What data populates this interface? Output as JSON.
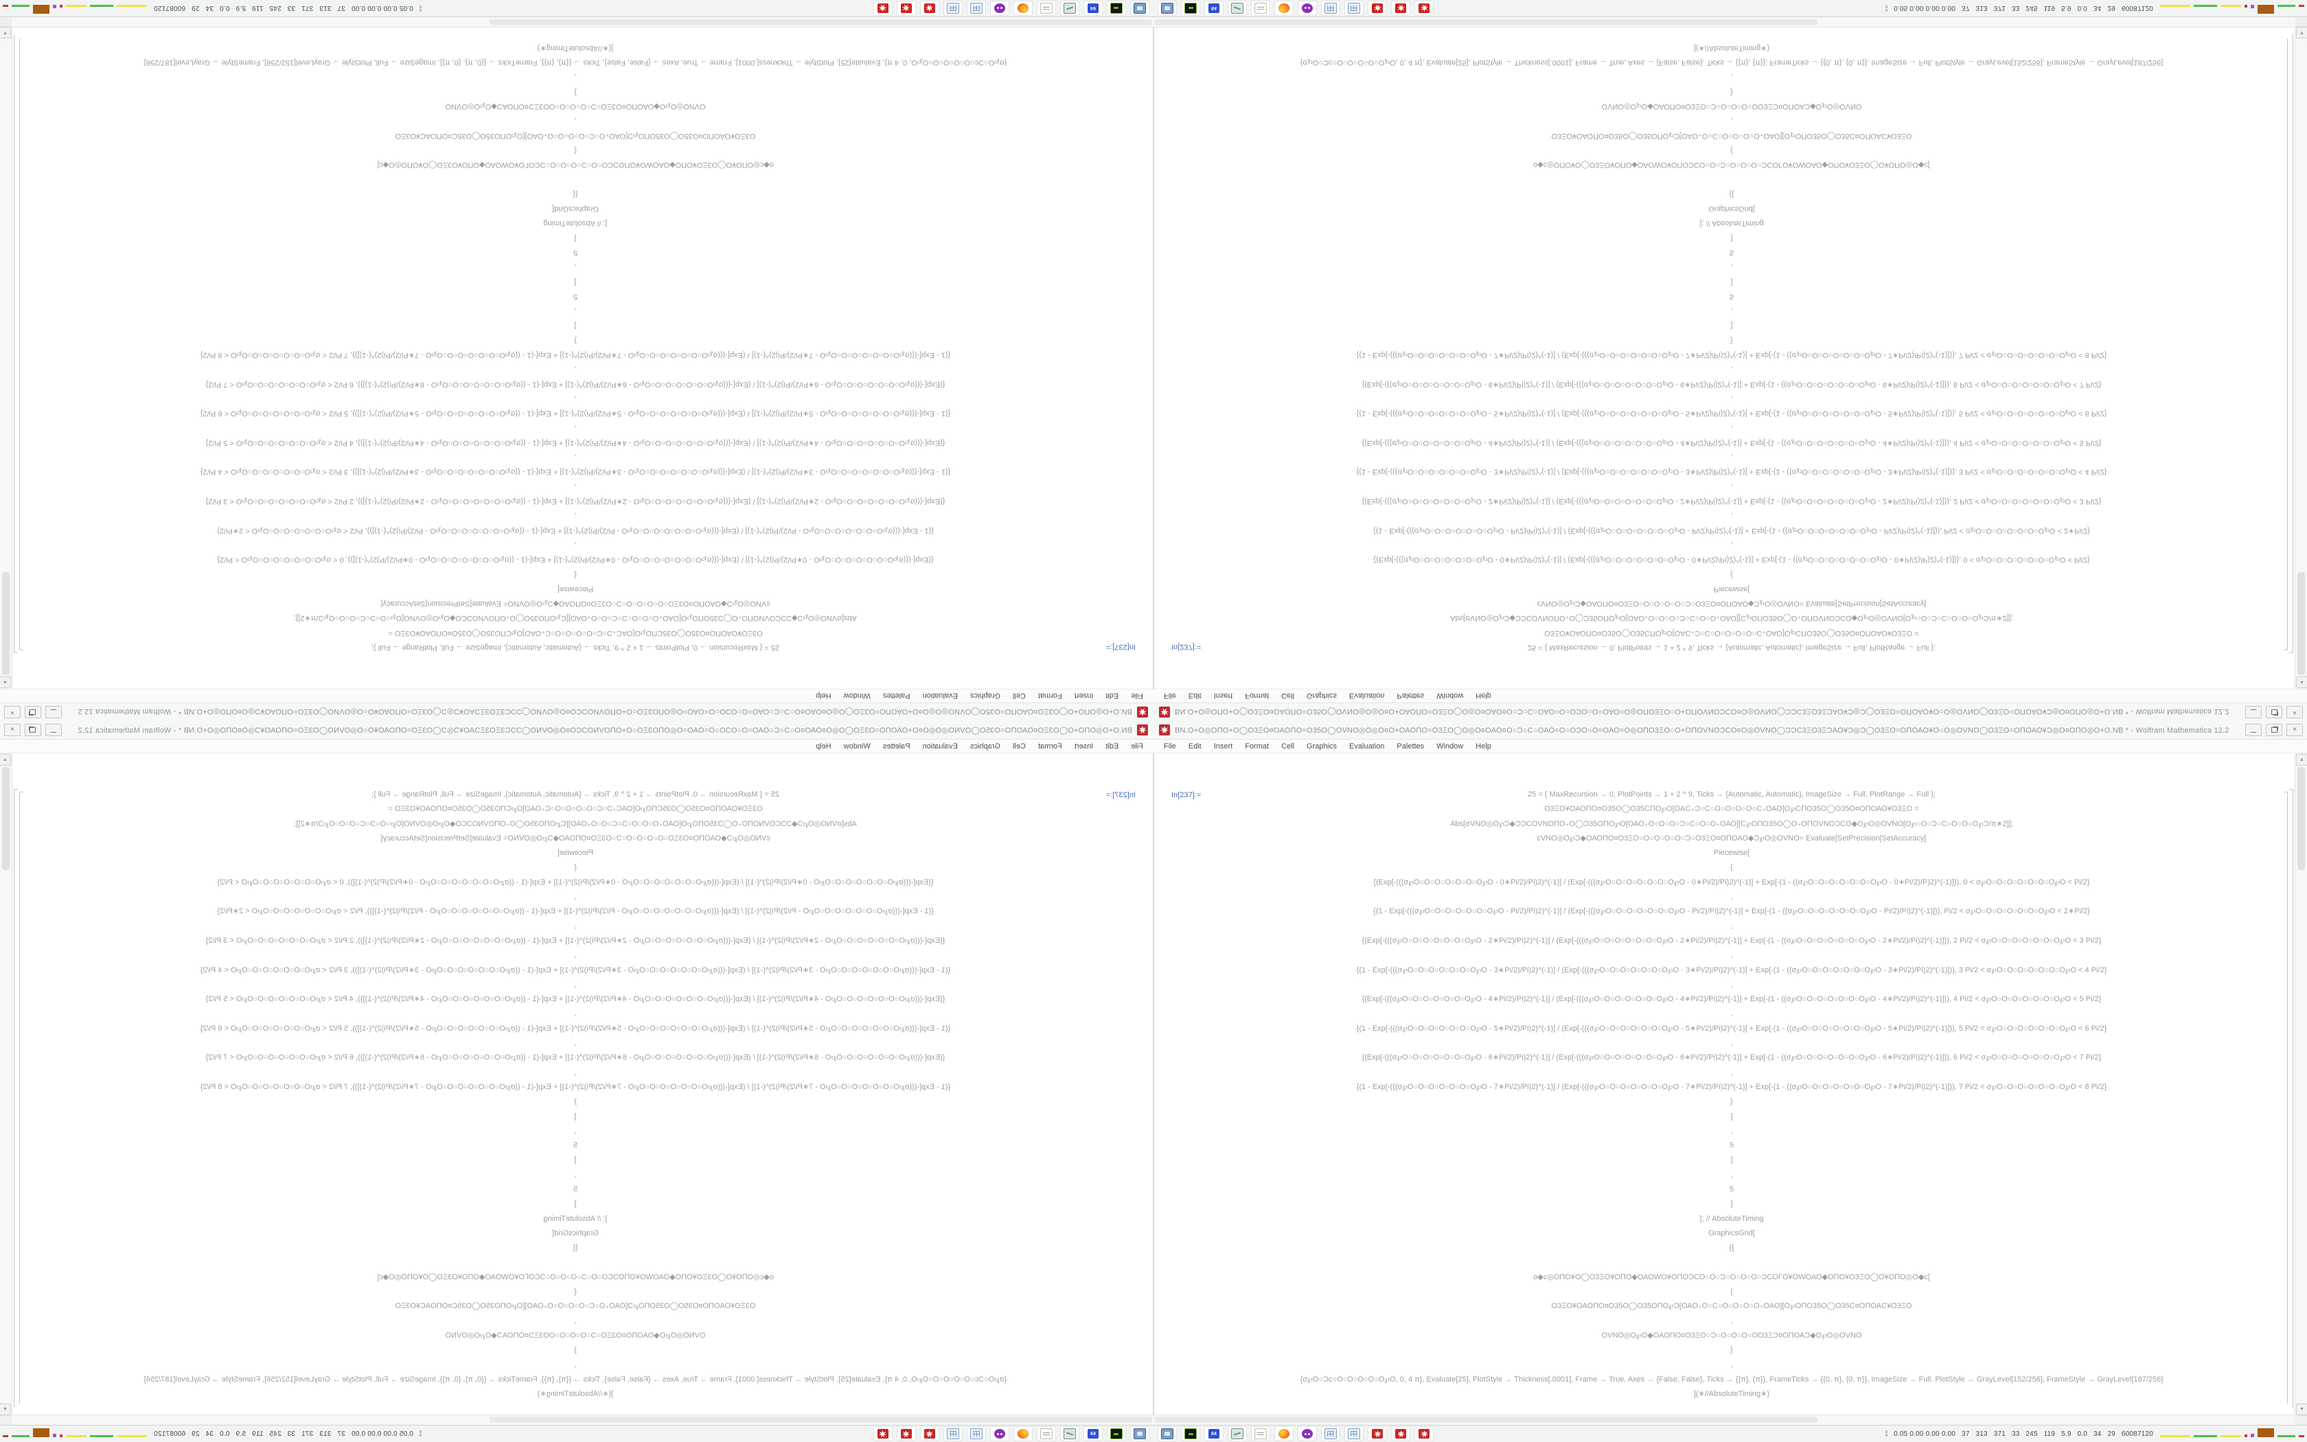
{
  "window": {
    "title_garble": "ΒΝ.Ο+Ο◎ΟΠΟ+Ο◯Ο3ΞΟ¤ΟΑΟΠΟ=Ο35Ο◯ΟVΝΟ◎Ο◎Ο¤Ο+ΟΑΟΠΟ=Ο3ΞΟ◯Ο◎Ο¤ΟΑΟ¤Ο○Ɔ○C○ΟΑΟ=Ο○ΟƆΟ○Ο=ΟΑΟ=Ο◎ΟΠΟ3ΞΟ○Ο+ΟΠΟVΝΟƆCΟ¤Ο◎ΟVΝΟ◯ƆƆC3ΞΟ3ΞƆΑΟ¥Ɔ◎Ɔ◯Ο3ΞΟ=ΟΠΟΑΟ¥Ο○Ο◎ΟVΝΟ◯Ο3ΞΟ=ΟΠΟΑΟ¥Ɔ◎Ο¤ΟΠΟ◎Ο+Ο.ΝΒ * - Wolfram Mathematica 12.2",
    "buttons": {
      "minimize": "minimize",
      "restore": "restore",
      "close": "×"
    }
  },
  "menubar": {
    "items": [
      "File",
      "Edit",
      "Insert",
      "Format",
      "Cell",
      "Graphics",
      "Evaluation",
      "Palettes",
      "Window",
      "Help"
    ]
  },
  "notebook": {
    "in_label": "In[237]:=",
    "lines": [
      "25 = {  MaxRecursion → 0, PlotPoints → 1 + 2 ^ 9, Ticks → {Automatic, Automatic}, ImageSize → Full, PlotRange → Full  };",
      "Ο3ΞΟ¥ΟΑΟΠΟ¤Ο35Ο◯Ο35CΠΟ℘Ο[ΟΑC₊Ɔ○C○Ο○Ο○Ο○Ο○C₊ΟΑΟ]Ο℘CΠΟ35Ο◯Ο35Ο¤ΟΠΟΑΟ¥Ο3ΞΟ  =",
      "Abs[σVΝΟ◎Ο℘Ɔ◆ƆƆCΟVΝΟΠΟ₊Ο◯Ɔ35ΟΠΟ℘Ο[ΟΑΟ₊Ο○Ο○Ο○Ɔ○C○Ο○Ο₊ΟΑΟ][C℘ΟΠΟ35Ο◯Ο₊ΟΠΟVΝΟƆCΟ◆Ο℘Ο◎ΟVΝΟ[Ο℘○Ο○Ɔ○C○Ο○Ο○Ο℘Ɔ/π∗2]];",
      "cVΝΟ◎Ο℘Ɔ◆ΟΑΟΠΟ¤Ο3ΞΟ○Ο○Ο○Ο○Ο○Ɔ○Ο3ΞΟ¤ΟΠΟΑΟ◆Ɔ℘Ο◎ΟVΝΟ= Evaluate[SetPrecision[SetAccuracy[",
      "Piecewise[",
      "{",
      "{(Exp[-(((σ℘Ο○Ο○Ο○Ο○Ο○Ο○Ο℘Ο - 0∗Pi/2)/Pi)2)^(-1)] / (Exp[-(((σ℘Ο○Ο○Ο○Ο○Ο○Ο○Ο℘Ο - 0∗Pi/2)/Pi)2)^(-1)] + Exp[-(1 - ((σ℘Ο○Ο○Ο○Ο○Ο○Ο○Ο℘Ο - 0∗Pi/2)/P)2)^(-1)])), 0 < σ℘Ο○Ο○Ο○Ο○Ο○Ο○Ο℘Ο < Pi/2}",
      ",",
      "{(1 - Exp[-(((σ℘Ο○Ο○Ο○Ο○Ο○Ο○Ο℘Ο - Pi/2)/Pi)2)^(-1)] / (Exp[-(((σ℘Ο○Ο○Ο○Ο○Ο○Ο○Ο℘Ο - Pi/2)/Pi)2)^(-1)] + Exp[-(1 - ((σ℘Ο○Ο○Ο○Ο○Ο○Ο○Ο℘Ο - Pi/2)/Pi)2)^(-1)])), Pi/2 < σ℘Ο○Ο○Ο○Ο○Ο○Ο○Ο℘Ο < 2∗Pi/2}",
      ",",
      "{(Exp[-(((σ℘Ο○Ο○Ο○Ο○Ο○Ο○Ο℘Ο - 2∗Pi/2)/Pi)2)^(-1)] / (Exp[-(((σ℘Ο○Ο○Ο○Ο○Ο○Ο○Ο℘Ο - 2∗Pi/2)/Pi)2)^(-1)] + Exp[-(1 - ((σ℘Ο○Ο○Ο○Ο○Ο○Ο○Ο℘Ο - 2∗Pi/2)/Pi)2)^(-1)])), 2 Pi/2 < σ℘Ο○Ο○Ο○Ο○Ο○Ο○Ο℘Ο < 3 Pi/2}",
      ",",
      "{(1 - Exp[-(((σ℘Ο○Ο○Ο○Ο○Ο○Ο○Ο℘Ο - 3∗Pi/2)/Pi)2)^(-1)] / (Exp[-(((σ℘Ο○Ο○Ο○Ο○Ο○Ο○Ο℘Ο - 3∗Pi/2)/Pi)2)^(-1)] + Exp[-(1 - ((σ℘Ο○Ο○Ο○Ο○Ο○Ο○Ο℘Ο - 3∗Pi/2)/Pi)2)^(-1)])), 3 Pi/2 < σ℘Ο○Ο○Ο○Ο○Ο○Ο○Ο℘Ο < 4 Pi/2}",
      ",",
      "{(Exp[-(((σ℘Ο○Ο○Ο○Ο○Ο○Ο○Ο℘Ο - 4∗Pi/2)/Pi)2)^(-1)] / (Exp[-(((σ℘Ο○Ο○Ο○Ο○Ο○Ο○Ο℘Ο - 4∗Pi/2)/Pi)2)^(-1)] + Exp[-(1 - ((σ℘Ο○Ο○Ο○Ο○Ο○Ο○Ο℘Ο - 4∗Pi/2)/Pi)2)^(-1)])), 4 Pi/2 < σ℘Ο○Ο○Ο○Ο○Ο○Ο○Ο℘Ο < 5 Pi/2}",
      ",",
      "{(1 - Exp[-(((σ℘Ο○Ο○Ο○Ο○Ο○Ο○Ο℘Ο - 5∗Pi/2)/Pi)2)^(-1)] / (Exp[-(((σ℘Ο○Ο○Ο○Ο○Ο○Ο○Ο℘Ο - 5∗Pi/2)/Pi)2)^(-1)] + Exp[-(1 - ((σ℘Ο○Ο○Ο○Ο○Ο○Ο○Ο℘Ο - 5∗Pi/2)/Pi)2)^(-1)])), 5 Pi/2 < σ℘Ο○Ο○Ο○Ο○Ο○Ο○Ο℘Ο < 6 Pi/2}",
      ",",
      "{(Exp[-(((σ℘Ο○Ο○Ο○Ο○Ο○Ο○Ο℘Ο - 6∗Pi/2)/Pi)2)^(-1)] / (Exp[-(((σ℘Ο○Ο○Ο○Ο○Ο○Ο○Ο℘Ο - 6∗Pi/2)/Pi)2)^(-1)] + Exp[-(1 - ((σ℘Ο○Ο○Ο○Ο○Ο○Ο○Ο℘Ο - 6∗Pi/2)/Pi)2)^(-1)])), 6 Pi/2 < σ℘Ο○Ο○Ο○Ο○Ο○Ο○Ο℘Ο < 7 Pi/2}",
      ",",
      "{(1 - Exp[-(((σ℘Ο○Ο○Ο○Ο○Ο○Ο○Ο℘Ο - 7∗Pi/2)/Pi)2)^(-1)] / (Exp[-(((σ℘Ο○Ο○Ο○Ο○Ο○Ο○Ο℘Ο - 7∗Pi/2)/Pi)2)^(-1)] + Exp[-(1 - ((σ℘Ο○Ο○Ο○Ο○Ο○Ο○Ο℘Ο - 7∗Pi/2)/Pi)2)^(-1)])), 7 Pi/2 < σ℘Ο○Ο○Ο○Ο○Ο○Ο○Ο℘Ο < 8 Pi/2}",
      "}",
      "]",
      ",",
      "5",
      "]",
      ",",
      "5",
      "]",
      "]; // AbsoluteTiming",
      "GraphicsGrid[",
      "{{",
      "",
      "o◆c◎ΟΠΟ¥Ο◯Ο3ΞΟ¥ΟΠΟ◆ΟΑΟWΟ¥ΟΠΟƆCΟ○Ο○Ɔ○Ο○Ο○Ο○ƆCΟΓΟ¥ΟWΟΑΟ◆ΟΠΟ¥Ο3ΞΟ◯Ο¥ΟΠΟ◎Ο◆c[",
      "{",
      "Ο3ΞΟ¥ΟΑΟΠΟ¤Ο35Ο◯Ο35ΟΠΟ℘Ɔ[ΟΑΟ₊Ο○C○Ο○Ο○Ο○Ο₊ΟΑΟ][Ο℘ΟΠΟ35Ο◯Ο35C¤ΟΠΟΑC¥Ο3ΞΟ",
      ",",
      "ΟVΝΟ◎Ο℘Ο◆ΟΑΟΠΟ¤Ο3ΞΟ○Ɔ○Ο○Ο○Ο○ΟΟ3ΞƆ¤ΟΠΟΑƆ◆Ο℘Ο◎ΟVΝΟ",
      "}",
      ",",
      "{σ℘Ο○Ɔc○Ο○Ο○Ο○Ο○Ο℘Ο, 0, 4 π}, Evaluate[25], PlotStyle → Thickness[.0001], Frame → True, Axes → {False, False}, Ticks → {{π}, {π}}, FrameTicks → {{0, π}, {0, π}}, ImageSize → Full, PlotStyle → GrayLevel[152/256], FrameStyle → GrayLevel[187/256]",
      "](∗//AbsoluteTiming∗)",
      "",
      "}"
    ]
  },
  "taskbar": {
    "icons": [
      {
        "name": "system-settings-icon",
        "kind": "monitor"
      },
      {
        "name": "boot-drive-icon",
        "kind": "drive"
      },
      {
        "name": "floppy-64-icon",
        "kind": "floppy",
        "label": "64"
      },
      {
        "name": "performance-monitor-icon",
        "kind": "perf"
      },
      {
        "name": "notepad-icon",
        "kind": "notepad"
      },
      {
        "name": "firefox-icon",
        "kind": "firefox"
      },
      {
        "name": "owl-app-icon",
        "kind": "owl"
      },
      {
        "name": "calculator-icon",
        "kind": "calc"
      },
      {
        "name": "calculator-icon-2",
        "kind": "calc"
      },
      {
        "name": "mathematica-icon-1",
        "kind": "mathematica"
      },
      {
        "name": "mathematica-icon-2",
        "kind": "mathematica"
      },
      {
        "name": "mathematica-icon-3",
        "kind": "mathematica"
      }
    ],
    "tray": {
      "chevron_up": "∧",
      "chevron_down": "∨",
      "stats_text": "0.05 0.00 0.00 0.00   37   313   371   33   245   119   5.9   0.0   34   29   60087120",
      "graphs": [
        {
          "name": "cpu-graph-yellow",
          "color": "#f0e43c",
          "w": 44,
          "h": 3
        },
        {
          "name": "mem-graph-green",
          "color": "#4cbe4c",
          "w": 34,
          "h": 3
        },
        {
          "name": "net-graph-yellow",
          "color": "#f0e43c",
          "w": 30,
          "h": 3
        },
        {
          "name": "swap-dot-red",
          "color": "#d03434",
          "w": 4,
          "h": 4
        },
        {
          "name": "io-dot-purple",
          "color": "#a94fd0",
          "w": 5,
          "h": 5
        },
        {
          "name": "load-block-brown",
          "color": "#a85c10",
          "w": 24,
          "h": 13
        },
        {
          "name": "temp-graph-green",
          "color": "#4cbe4c",
          "w": 26,
          "h": 3
        },
        {
          "name": "temp-tip-red",
          "color": "#c43a3a",
          "w": 8,
          "h": 3
        }
      ]
    }
  },
  "colors": {
    "accent_red": "#c0272d",
    "in_label_blue": "#4a6fb5",
    "code_gray": "#9aa0a0",
    "chrome_bg": "#f6f7f7",
    "taskbar_bg": "#f2f3f3"
  }
}
